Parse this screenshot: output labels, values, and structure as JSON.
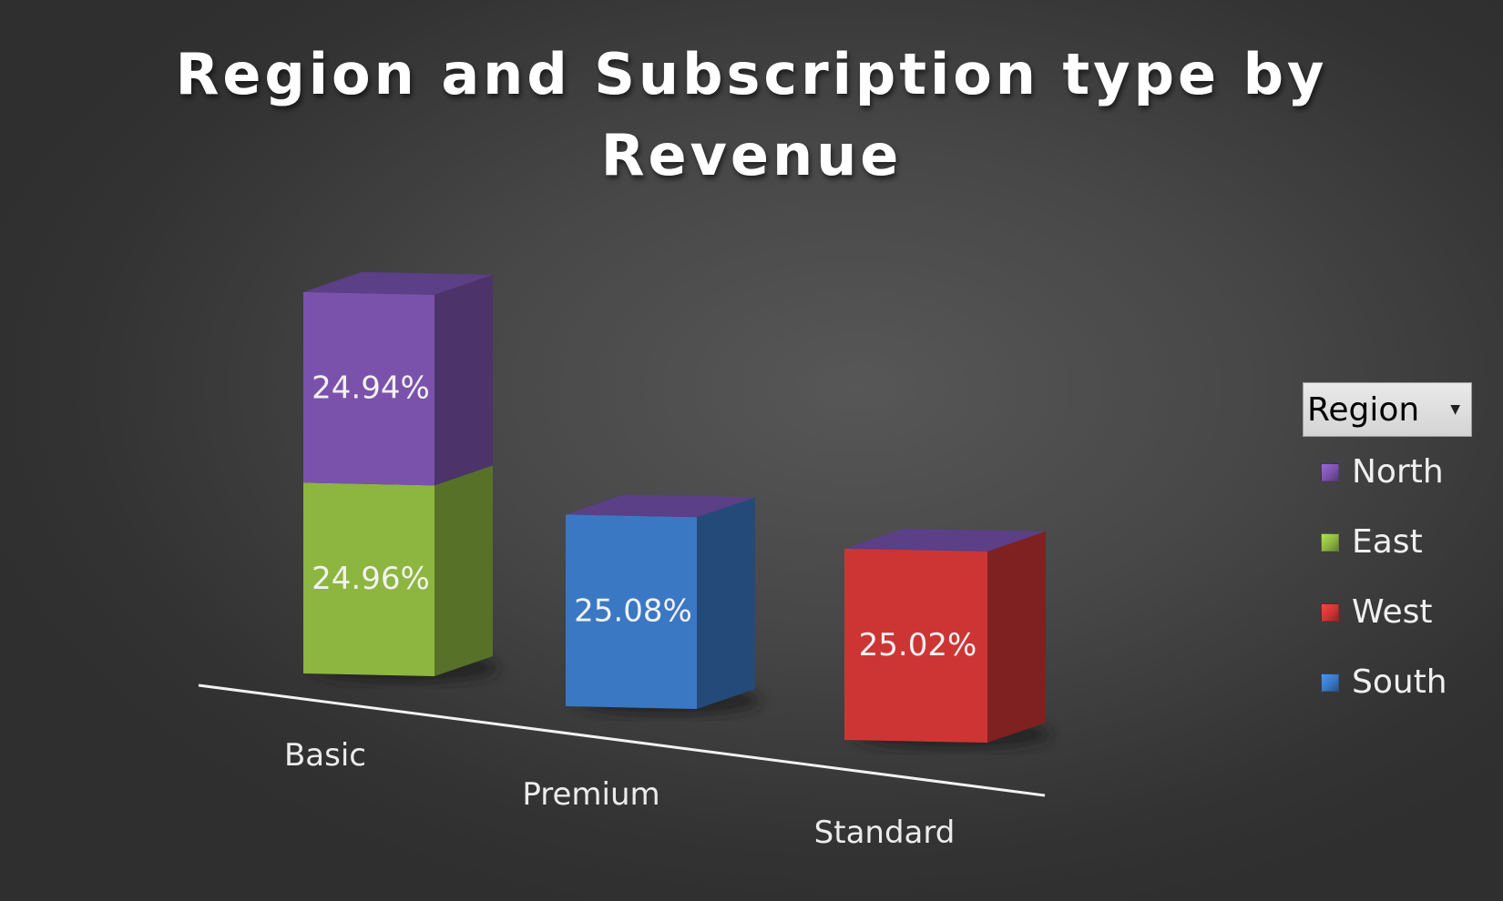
{
  "chart_data": {
    "type": "bar",
    "style": "3d-stacked-column",
    "title_lines": [
      "Region and Subscription type by",
      "Revenue"
    ],
    "categories": [
      "Basic",
      "Premium",
      "Standard"
    ],
    "legend_title": "Region",
    "legend_placement": "right",
    "grid": false,
    "series": [
      {
        "name": "North",
        "color": "#7b52ab",
        "values": [
          24.94,
          0,
          0
        ],
        "labels": [
          "24.94%",
          "",
          ""
        ]
      },
      {
        "name": "East",
        "color": "#8db640",
        "values": [
          24.96,
          0,
          0
        ],
        "labels": [
          "24.96%",
          "",
          ""
        ]
      },
      {
        "name": "West",
        "color": "#cd3535",
        "values": [
          0,
          0,
          25.02
        ],
        "labels": [
          "",
          "",
          "25.02%"
        ]
      },
      {
        "name": "South",
        "color": "#3a78c4",
        "values": [
          0,
          25.08,
          0
        ],
        "labels": [
          "",
          "25.08%",
          ""
        ]
      }
    ]
  }
}
